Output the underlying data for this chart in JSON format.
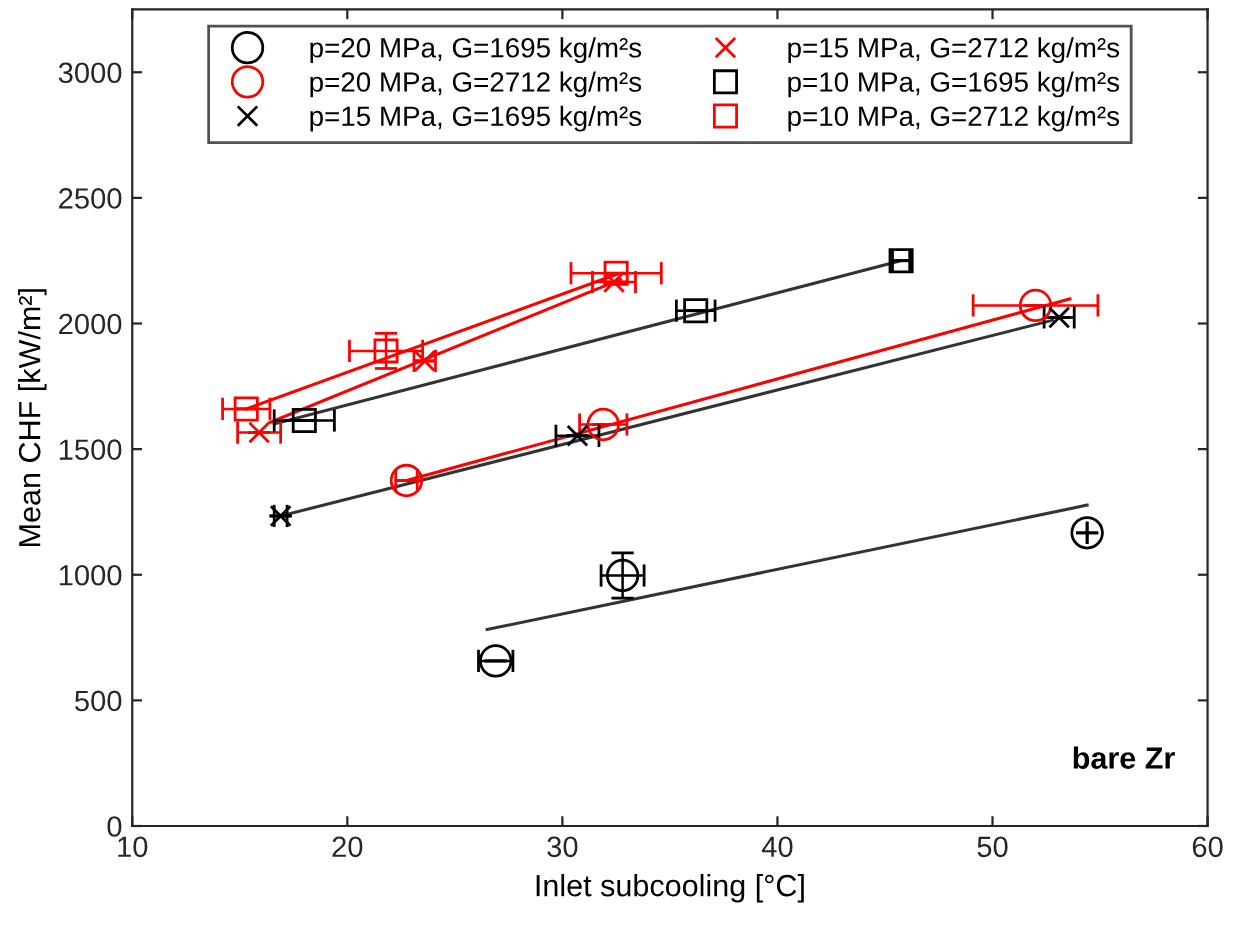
{
  "chart_data": {
    "type": "scatter",
    "xlabel": "Inlet subcooling [°C]",
    "ylabel": "Mean CHF [kW/m²]",
    "annotations": [
      "bare Zr"
    ],
    "xlim": [
      10,
      60
    ],
    "ylim": [
      0,
      3250
    ],
    "xticks": [
      10,
      20,
      30,
      40,
      50,
      60
    ],
    "yticks": [
      0,
      500,
      1000,
      1500,
      2000,
      2500,
      3000
    ],
    "grid": false,
    "legend": "top",
    "series": [
      {
        "name": "p=20 MPa, G=1695 kg/m²s",
        "color": "#000000",
        "marker": "circle",
        "x": [
          26.9,
          32.8,
          54.4
        ],
        "values": [
          657,
          997,
          1167
        ],
        "xerrors": [
          0.8,
          1.0,
          null
        ],
        "errors": [
          null,
          90,
          null
        ]
      },
      {
        "name": "p=20 MPa, G=2712 kg/m²s",
        "color": "#ff0000",
        "marker": "circle",
        "x": [
          22.75,
          31.9,
          52.0
        ],
        "values": [
          1375,
          1598,
          2072
        ],
        "xerrors": [
          0.5,
          1.1,
          2.9
        ],
        "errors": [
          null,
          null,
          null
        ]
      },
      {
        "name": "p=15 MPa, G=1695 kg/m²s",
        "color": "#000000",
        "marker": "cross",
        "x": [
          16.9,
          30.7,
          53.1
        ],
        "values": [
          1234,
          1553,
          2024
        ],
        "xerrors": [
          0.3,
          1.0,
          0.7
        ],
        "errors": [
          null,
          null,
          null
        ]
      },
      {
        "name": "p=15 MPa, G=2712 kg/m²s",
        "color": "#ff0000",
        "marker": "cross",
        "x": [
          15.9,
          23.6,
          32.4
        ],
        "values": [
          1566,
          1851,
          2165
        ],
        "xerrors": [
          1.0,
          0.5,
          1.0
        ],
        "errors": [
          null,
          null,
          null
        ]
      },
      {
        "name": "p=10 MPa, G=1695 kg/m²s",
        "color": "#000000",
        "marker": "square",
        "x": [
          18.0,
          36.2,
          45.75
        ],
        "values": [
          1614,
          2051,
          2250
        ],
        "xerrors": [
          1.4,
          0.9,
          0.4
        ],
        "errors": [
          null,
          null,
          null
        ]
      },
      {
        "name": "p=10 MPa, G=2712 kg/m²s",
        "color": "#ff0000",
        "marker": "square",
        "x": [
          15.3,
          21.8,
          32.5
        ],
        "values": [
          1660,
          1891,
          2200
        ],
        "xerrors": [
          1.1,
          1.7,
          2.1
        ],
        "errors": [
          null,
          70,
          null
        ]
      },
      {
        "type": "line",
        "color": "#333333",
        "x": [
          26.5,
          54.4
        ],
        "values": [
          782,
          1277
        ]
      },
      {
        "type": "line",
        "color": "#ff0000",
        "x": [
          22.75,
          53.6
        ],
        "values": [
          1375,
          2098
        ]
      },
      {
        "type": "line",
        "color": "#333333",
        "x": [
          16.9,
          52.8
        ],
        "values": [
          1234,
          2013
        ]
      },
      {
        "type": "line",
        "color": "#ff0000",
        "x": [
          16.4,
          32.7
        ],
        "values": [
          1606,
          2175
        ]
      },
      {
        "type": "line",
        "color": "#333333",
        "x": [
          16.6,
          45.75
        ],
        "values": [
          1600,
          2250
        ]
      },
      {
        "type": "line",
        "color": "#ff0000",
        "x": [
          15.3,
          32.5
        ],
        "values": [
          1660,
          2195
        ]
      }
    ]
  }
}
